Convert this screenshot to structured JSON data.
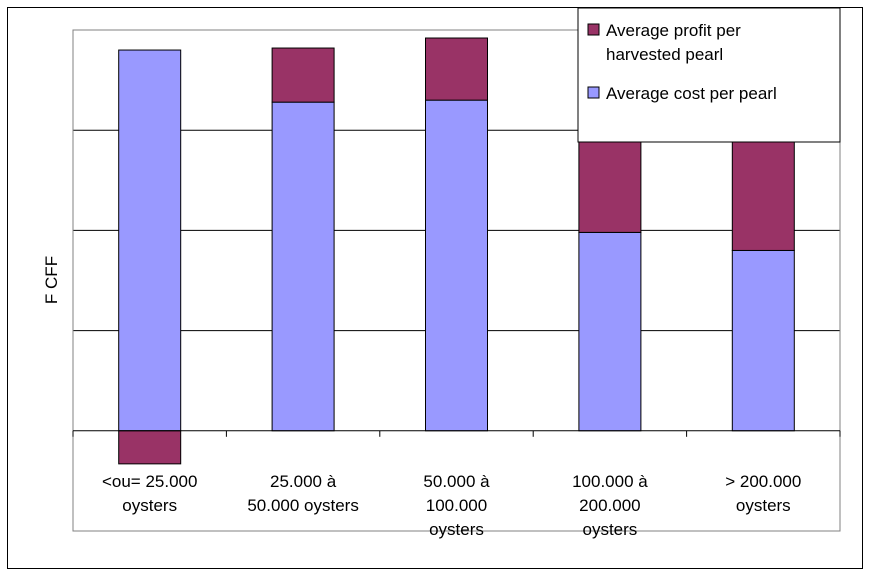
{
  "chart_data": {
    "type": "bar",
    "stacked": true,
    "title": "",
    "xlabel": "",
    "ylabel": "F CFF",
    "ylim": [
      -1,
      4
    ],
    "grid": true,
    "legend_position": "top-right",
    "categories": [
      [
        "<ou= 25.000",
        "oysters"
      ],
      [
        "25.000 à",
        "50.000 oysters"
      ],
      [
        "50.000 à",
        "100.000",
        "oysters"
      ],
      [
        "100.000 à",
        "200.000",
        "oysters"
      ],
      [
        "> 200.000",
        "oysters"
      ]
    ],
    "series": [
      {
        "name": "Average cost per pearl",
        "color": "#9999ff",
        "values": [
          3.8,
          3.28,
          3.3,
          1.98,
          1.8
        ]
      },
      {
        "name": "Average profit per harvested pearl",
        "color": "#993366",
        "values": [
          -0.33,
          0.54,
          0.62,
          1.2,
          1.75
        ]
      }
    ],
    "legend": [
      {
        "lines": [
          "Average profit per",
          "harvested pearl"
        ],
        "color": "#993366"
      },
      {
        "lines": [
          "Average cost per pearl"
        ],
        "color": "#9999ff"
      }
    ]
  }
}
